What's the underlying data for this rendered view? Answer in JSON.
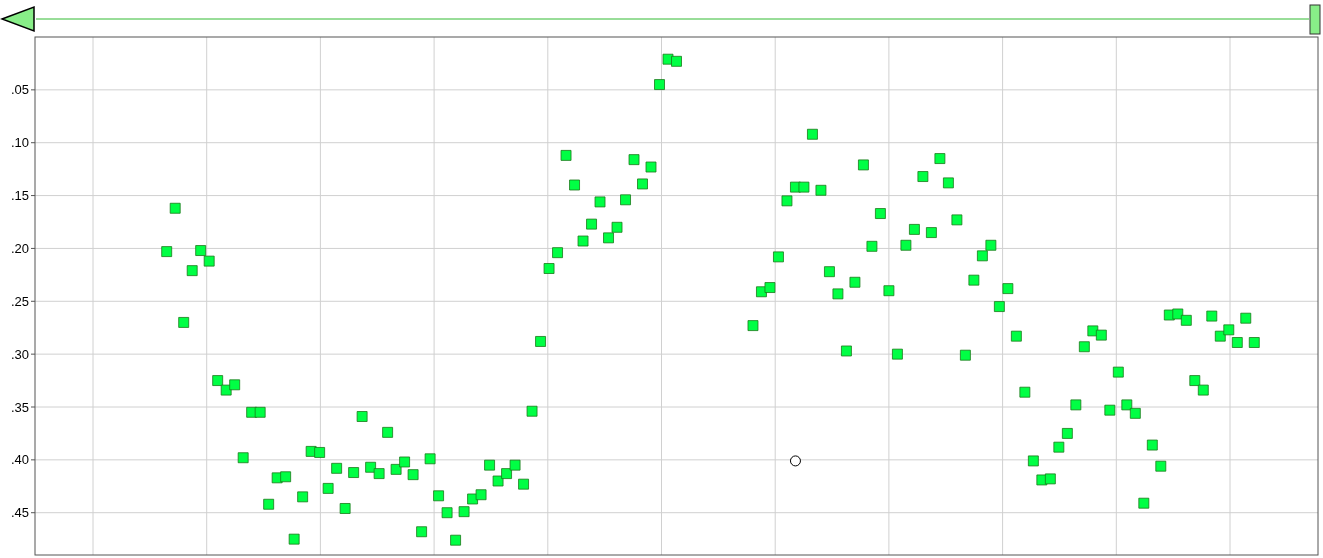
{
  "chart_data": {
    "type": "scatter",
    "categories": [
      null,
      null,
      null,
      null,
      null,
      null,
      null,
      null,
      null,
      null,
      null,
      null,
      null,
      null,
      null,
      null,
      null,
      null,
      null,
      null,
      null,
      null,
      null,
      null,
      null,
      null,
      null,
      null,
      null,
      null,
      null,
      null,
      null,
      null,
      null,
      null,
      null,
      null,
      null,
      null,
      null,
      null,
      null,
      null,
      null,
      null,
      null,
      null,
      null,
      null,
      null,
      null,
      null,
      null,
      null,
      null,
      null,
      null,
      null,
      null,
      null,
      null,
      null,
      null,
      null,
      null,
      null,
      null,
      null,
      null,
      null,
      null,
      null,
      null,
      null,
      null,
      null,
      null,
      null,
      null,
      null,
      null,
      null,
      null,
      null,
      null,
      null,
      null,
      null,
      null,
      null,
      null,
      null,
      null,
      null,
      null,
      null,
      null,
      null,
      null,
      null,
      null,
      null,
      null,
      null,
      null,
      null,
      null,
      null,
      null,
      null,
      null,
      null,
      null,
      null,
      null,
      null,
      null,
      null,
      null,
      null,
      null,
      null,
      null,
      null,
      null,
      null,
      null,
      null,
      null,
      null,
      null,
      null,
      null,
      null,
      null,
      null,
      null,
      null,
      null,
      null,
      null,
      null,
      null,
      null,
      null,
      null,
      null,
      null,
      null,
      null
    ],
    "ylim": [
      0.49,
      0
    ],
    "yticks": [
      {
        "value": 0.05,
        "label": ".05"
      },
      {
        "value": 0.1,
        "label": ".10"
      },
      {
        "value": 0.15,
        "label": ".15"
      },
      {
        "value": 0.2,
        "label": ".20"
      },
      {
        "value": 0.25,
        "label": ".25"
      },
      {
        "value": 0.3,
        "label": ".30"
      },
      {
        "value": 0.35,
        "label": ".35"
      },
      {
        "value": 0.4,
        "label": ".40"
      },
      {
        "value": 0.45,
        "label": ".45"
      }
    ],
    "grid": true,
    "tick_labels": "y",
    "series": [
      {
        "color": "#00ff44",
        "marker": "square",
        "values": [
          null,
          null,
          null,
          null,
          null,
          null,
          null,
          null,
          null,
          null,
          null,
          null,
          null,
          null,
          null,
          0.203,
          0.162,
          0.27,
          0.221,
          0.202,
          0.212,
          0.325,
          0.334,
          0.329,
          0.398,
          0.355,
          0.355,
          0.442,
          0.417,
          0.416,
          0.475,
          0.435,
          0.392,
          0.393,
          0.427,
          0.408,
          0.446,
          0.412,
          0.359,
          0.407,
          0.413,
          0.374,
          0.409,
          0.402,
          0.414,
          0.468,
          0.399,
          0.434,
          0.45,
          0.476,
          0.449,
          0.437,
          0.433,
          0.405,
          0.42,
          0.413,
          0.405,
          0.423,
          0.354,
          0.288,
          0.219,
          0.204,
          0.112,
          0.14,
          0.193,
          0.177,
          0.156,
          0.19,
          0.18,
          0.154,
          0.116,
          0.139,
          0.123,
          0.045,
          0.021,
          0.023,
          null,
          null,
          null,
          null,
          null,
          null,
          null,
          null,
          0.273,
          0.241,
          0.237,
          0.208,
          0.155,
          0.142,
          0.142,
          0.092,
          0.145,
          0.222,
          0.243,
          0.297,
          0.232,
          0.121,
          0.198,
          0.167,
          0.24,
          0.3,
          0.197,
          0.182,
          0.132,
          0.185,
          0.115,
          0.138,
          0.173,
          0.301,
          0.23,
          0.207,
          0.197,
          0.255,
          0.238,
          0.283,
          0.336,
          0.401,
          0.419,
          0.418,
          0.388,
          0.375,
          0.348,
          0.293,
          0.278,
          0.282,
          0.353,
          0.317,
          0.348,
          0.356,
          0.441,
          0.386,
          0.406,
          0.263,
          0.262,
          0.268,
          0.325,
          0.334,
          0.264,
          0.283,
          0.277,
          0.289,
          0.266,
          0.289,
          null,
          null,
          null,
          null,
          null,
          null,
          null
        ]
      },
      {
        "color": "#000000",
        "marker": "circle",
        "values": [
          null,
          null,
          null,
          null,
          null,
          null,
          null,
          null,
          null,
          null,
          null,
          null,
          null,
          null,
          null,
          null,
          null,
          null,
          null,
          null,
          null,
          null,
          null,
          null,
          null,
          null,
          null,
          null,
          null,
          null,
          null,
          null,
          null,
          null,
          null,
          null,
          null,
          null,
          null,
          null,
          null,
          null,
          null,
          null,
          null,
          null,
          null,
          null,
          null,
          null,
          null,
          null,
          null,
          null,
          null,
          null,
          null,
          null,
          null,
          null,
          null,
          null,
          null,
          null,
          null,
          null,
          null,
          null,
          null,
          null,
          null,
          null,
          null,
          null,
          null,
          null,
          null,
          null,
          null,
          null,
          null,
          null,
          null,
          null,
          null,
          null,
          null,
          null,
          null,
          0.401,
          null,
          null,
          null,
          null,
          null,
          null,
          null,
          null,
          null,
          null,
          null,
          null,
          null,
          null,
          null,
          null,
          null,
          null,
          null,
          null,
          null,
          null,
          null,
          null,
          null,
          null,
          null,
          null,
          null,
          null,
          null,
          null,
          null,
          null,
          null,
          null,
          null,
          null,
          null,
          null,
          null,
          null,
          null,
          null,
          null,
          null,
          null,
          null,
          null,
          null,
          null,
          null,
          null,
          null,
          null,
          null,
          null,
          null,
          null,
          null,
          null
        ]
      }
    ]
  }
}
